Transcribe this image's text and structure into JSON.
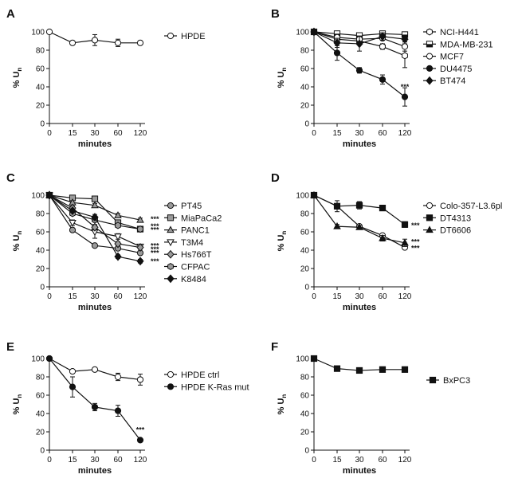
{
  "chart_data": [
    {
      "panel": "A",
      "type": "line",
      "xlabel": "minutes",
      "ylabel": "% U",
      "ylabel_sub": "n",
      "x": [
        0,
        15,
        30,
        60,
        120
      ],
      "xticks": [
        "0",
        "15",
        "30",
        "60",
        "120"
      ],
      "yticks": [
        "0",
        "20",
        "40",
        "60",
        "80",
        "100"
      ],
      "ylim": [
        0,
        100
      ],
      "series": [
        {
          "name": "HPDE",
          "marker": "circle-open",
          "values": [
            100,
            88,
            91,
            88,
            88
          ],
          "errors": [
            0,
            2,
            6,
            4,
            2
          ]
        }
      ],
      "significance": []
    },
    {
      "panel": "B",
      "type": "line",
      "xlabel": "minutes",
      "ylabel": "% U",
      "ylabel_sub": "n",
      "x": [
        0,
        15,
        30,
        60,
        120
      ],
      "xticks": [
        "0",
        "15",
        "30",
        "60",
        "120"
      ],
      "yticks": [
        "0",
        "20",
        "40",
        "60",
        "80",
        "100"
      ],
      "ylim": [
        0,
        100
      ],
      "series": [
        {
          "name": "NCI-H441",
          "marker": "hex-open",
          "values": [
            100,
            92,
            90,
            84,
            74
          ],
          "errors": [
            0,
            3,
            3,
            3,
            13
          ]
        },
        {
          "name": "MDA-MB-231",
          "marker": "square-half",
          "values": [
            100,
            98,
            96,
            98,
            97
          ],
          "errors": [
            0,
            2,
            2,
            2,
            2
          ]
        },
        {
          "name": "MCF7",
          "marker": "circle-open",
          "values": [
            100,
            94,
            92,
            93,
            84
          ],
          "errors": [
            0,
            2,
            3,
            2,
            5
          ]
        },
        {
          "name": "DU4475",
          "marker": "circle-filled",
          "values": [
            100,
            77,
            58,
            48,
            29
          ],
          "errors": [
            0,
            8,
            3,
            5,
            10
          ]
        },
        {
          "name": "BT474",
          "marker": "diamond-filled",
          "values": [
            100,
            88,
            87,
            95,
            92
          ],
          "errors": [
            0,
            5,
            8,
            4,
            3
          ]
        }
      ],
      "significance": [
        {
          "x": 120,
          "y": 40,
          "label": "***"
        }
      ]
    },
    {
      "panel": "C",
      "type": "line",
      "xlabel": "minutes",
      "ylabel": "% U",
      "ylabel_sub": "n",
      "x": [
        0,
        15,
        30,
        60,
        120
      ],
      "xticks": [
        "0",
        "15",
        "30",
        "60",
        "120"
      ],
      "yticks": [
        "0",
        "20",
        "40",
        "60",
        "80",
        "100"
      ],
      "ylim": [
        0,
        100
      ],
      "series": [
        {
          "name": "PT45",
          "marker": "circle-gray",
          "values": [
            100,
            62,
            45,
            42,
            37
          ],
          "errors": [
            0,
            2,
            2,
            2,
            2
          ]
        },
        {
          "name": "MiaPaCa2",
          "marker": "square-gray",
          "values": [
            100,
            97,
            96,
            70,
            63
          ],
          "errors": [
            0,
            2,
            2,
            2,
            2
          ]
        },
        {
          "name": "PANC1",
          "marker": "triangle-up-gray",
          "values": [
            100,
            92,
            89,
            78,
            73
          ],
          "errors": [
            0,
            2,
            2,
            2,
            2
          ]
        },
        {
          "name": "T3M4",
          "marker": "triangle-down-open",
          "values": [
            100,
            70,
            60,
            55,
            44
          ],
          "errors": [
            0,
            3,
            7,
            3,
            2
          ]
        },
        {
          "name": "Hs766T",
          "marker": "diamond-gray",
          "values": [
            100,
            86,
            65,
            47,
            43
          ],
          "errors": [
            0,
            2,
            3,
            2,
            2
          ]
        },
        {
          "name": "CFPAC",
          "marker": "hex-gray",
          "values": [
            100,
            80,
            73,
            67,
            63
          ],
          "errors": [
            0,
            2,
            2,
            2,
            2
          ]
        },
        {
          "name": "K8484",
          "marker": "diamond-filled",
          "values": [
            100,
            83,
            76,
            33,
            28
          ],
          "errors": [
            0,
            2,
            3,
            2,
            2
          ]
        }
      ],
      "significance": [
        {
          "x": 120,
          "y": 74,
          "label": "***"
        },
        {
          "x": 120,
          "y": 66,
          "label": "***"
        },
        {
          "x": 120,
          "y": 62,
          "label": "***"
        },
        {
          "x": 120,
          "y": 45,
          "label": "***"
        },
        {
          "x": 120,
          "y": 41,
          "label": "***"
        },
        {
          "x": 120,
          "y": 37,
          "label": "***"
        },
        {
          "x": 120,
          "y": 28,
          "label": "***"
        }
      ]
    },
    {
      "panel": "D",
      "type": "line",
      "xlabel": "minutes",
      "ylabel": "% U",
      "ylabel_sub": "n",
      "x": [
        0,
        15,
        30,
        60,
        120
      ],
      "xticks": [
        "0",
        "15",
        "30",
        "60",
        "120"
      ],
      "yticks": [
        "0",
        "20",
        "40",
        "60",
        "80",
        "100"
      ],
      "ylim": [
        0,
        100
      ],
      "series": [
        {
          "name": "Colo-357-L3.6pl",
          "marker": "circle-open",
          "values": [
            100,
            88,
            66,
            56,
            43
          ],
          "errors": [
            0,
            3,
            2,
            2,
            2
          ]
        },
        {
          "name": "DT4313",
          "marker": "square-filled",
          "values": [
            100,
            88,
            89,
            86,
            68
          ],
          "errors": [
            0,
            6,
            4,
            2,
            3
          ]
        },
        {
          "name": "DT6606",
          "marker": "triangle-up-filled",
          "values": [
            100,
            66,
            65,
            53,
            48
          ],
          "errors": [
            0,
            2,
            2,
            3,
            4
          ]
        }
      ],
      "significance": [
        {
          "x": 120,
          "y": 67,
          "label": "***"
        },
        {
          "x": 120,
          "y": 49,
          "label": "***"
        },
        {
          "x": 120,
          "y": 42,
          "label": "***"
        }
      ]
    },
    {
      "panel": "E",
      "type": "line",
      "xlabel": "minutes",
      "ylabel": "% U",
      "ylabel_sub": "n",
      "x": [
        0,
        15,
        30,
        60,
        120
      ],
      "xticks": [
        "0",
        "15",
        "30",
        "60",
        "120"
      ],
      "yticks": [
        "0",
        "20",
        "40",
        "60",
        "80",
        "100"
      ],
      "ylim": [
        0,
        100
      ],
      "series": [
        {
          "name": "HPDE ctrl",
          "marker": "circle-open",
          "values": [
            100,
            86,
            88,
            80,
            77
          ],
          "errors": [
            0,
            2,
            2,
            4,
            6
          ]
        },
        {
          "name": "HPDE K-Ras mut",
          "marker": "circle-filled",
          "values": [
            100,
            69,
            47,
            43,
            11
          ],
          "errors": [
            0,
            11,
            4,
            6,
            2
          ]
        }
      ],
      "significance": [
        {
          "x": 120,
          "y": 22,
          "label": "***"
        }
      ]
    },
    {
      "panel": "F",
      "type": "line",
      "xlabel": "minutes",
      "ylabel": "% U",
      "ylabel_sub": "n",
      "x": [
        0,
        15,
        30,
        60,
        120
      ],
      "xticks": [
        "0",
        "15",
        "30",
        "60",
        "120"
      ],
      "yticks": [
        "0",
        "20",
        "40",
        "60",
        "80",
        "100"
      ],
      "ylim": [
        0,
        100
      ],
      "series": [
        {
          "name": "BxPC3",
          "marker": "square-filled",
          "values": [
            100,
            89,
            87,
            88,
            88
          ],
          "errors": [
            0,
            2,
            3,
            2,
            2
          ]
        }
      ],
      "significance": []
    }
  ]
}
